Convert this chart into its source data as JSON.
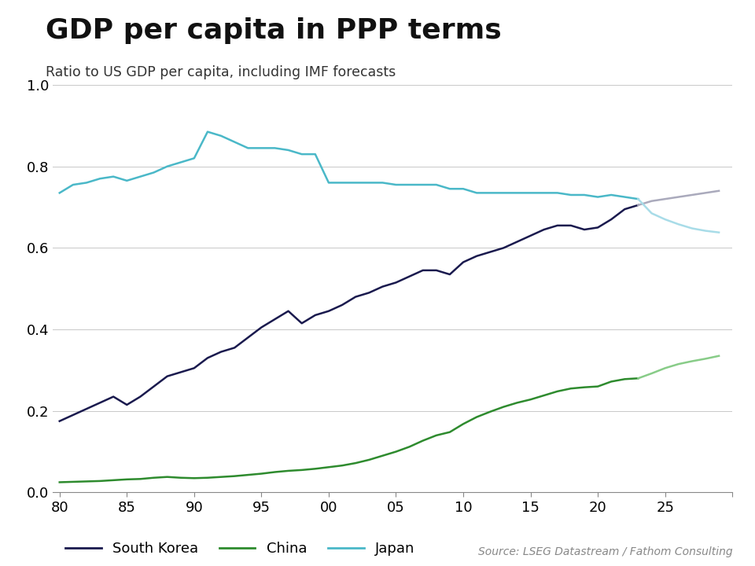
{
  "title": "GDP per capita in PPP terms",
  "subtitle": "Ratio to US GDP per capita, including IMF forecasts",
  "source": "Source: LSEG Datastream / Fathom Consulting",
  "ylim": [
    0.0,
    1.0
  ],
  "south_korea_color": "#1a1a4e",
  "china_color": "#2e8b2e",
  "japan_color": "#4ab8c8",
  "japan_forecast_color": "#a8dce8",
  "south_korea_forecast_color": "#aaaabc",
  "china_forecast_color": "#88cc88",
  "south_korea": {
    "years": [
      1980,
      1981,
      1982,
      1983,
      1984,
      1985,
      1986,
      1987,
      1988,
      1989,
      1990,
      1991,
      1992,
      1993,
      1994,
      1995,
      1996,
      1997,
      1998,
      1999,
      2000,
      2001,
      2002,
      2003,
      2004,
      2005,
      2006,
      2007,
      2008,
      2009,
      2010,
      2011,
      2012,
      2013,
      2014,
      2015,
      2016,
      2017,
      2018,
      2019,
      2020,
      2021,
      2022,
      2023
    ],
    "values": [
      0.175,
      0.19,
      0.205,
      0.22,
      0.235,
      0.215,
      0.235,
      0.26,
      0.285,
      0.295,
      0.305,
      0.33,
      0.345,
      0.355,
      0.38,
      0.405,
      0.425,
      0.445,
      0.415,
      0.435,
      0.445,
      0.46,
      0.48,
      0.49,
      0.505,
      0.515,
      0.53,
      0.545,
      0.545,
      0.535,
      0.565,
      0.58,
      0.59,
      0.6,
      0.615,
      0.63,
      0.645,
      0.655,
      0.655,
      0.645,
      0.65,
      0.67,
      0.695,
      0.705
    ]
  },
  "south_korea_forecast": {
    "years": [
      2023,
      2024,
      2025,
      2026,
      2027,
      2028,
      2029
    ],
    "values": [
      0.705,
      0.715,
      0.72,
      0.725,
      0.73,
      0.735,
      0.74
    ]
  },
  "china": {
    "years": [
      1980,
      1981,
      1982,
      1983,
      1984,
      1985,
      1986,
      1987,
      1988,
      1989,
      1990,
      1991,
      1992,
      1993,
      1994,
      1995,
      1996,
      1997,
      1998,
      1999,
      2000,
      2001,
      2002,
      2003,
      2004,
      2005,
      2006,
      2007,
      2008,
      2009,
      2010,
      2011,
      2012,
      2013,
      2014,
      2015,
      2016,
      2017,
      2018,
      2019,
      2020,
      2021,
      2022,
      2023
    ],
    "values": [
      0.025,
      0.026,
      0.027,
      0.028,
      0.03,
      0.032,
      0.033,
      0.036,
      0.038,
      0.036,
      0.035,
      0.036,
      0.038,
      0.04,
      0.043,
      0.046,
      0.05,
      0.053,
      0.055,
      0.058,
      0.062,
      0.066,
      0.072,
      0.08,
      0.09,
      0.1,
      0.112,
      0.127,
      0.14,
      0.148,
      0.168,
      0.185,
      0.198,
      0.21,
      0.22,
      0.228,
      0.238,
      0.248,
      0.255,
      0.258,
      0.26,
      0.272,
      0.278,
      0.28
    ]
  },
  "china_forecast": {
    "years": [
      2023,
      2024,
      2025,
      2026,
      2027,
      2028,
      2029
    ],
    "values": [
      0.28,
      0.292,
      0.305,
      0.315,
      0.322,
      0.328,
      0.335
    ]
  },
  "japan": {
    "years": [
      1980,
      1981,
      1982,
      1983,
      1984,
      1985,
      1986,
      1987,
      1988,
      1989,
      1990,
      1991,
      1992,
      1993,
      1994,
      1995,
      1996,
      1997,
      1998,
      1999,
      2000,
      2001,
      2002,
      2003,
      2004,
      2005,
      2006,
      2007,
      2008,
      2009,
      2010,
      2011,
      2012,
      2013,
      2014,
      2015,
      2016,
      2017,
      2018,
      2019,
      2020,
      2021,
      2022,
      2023
    ],
    "values": [
      0.735,
      0.755,
      0.76,
      0.77,
      0.775,
      0.765,
      0.775,
      0.785,
      0.8,
      0.81,
      0.82,
      0.885,
      0.875,
      0.86,
      0.845,
      0.845,
      0.845,
      0.84,
      0.83,
      0.83,
      0.76,
      0.76,
      0.76,
      0.76,
      0.76,
      0.755,
      0.755,
      0.755,
      0.755,
      0.745,
      0.745,
      0.735,
      0.735,
      0.735,
      0.735,
      0.735,
      0.735,
      0.735,
      0.73,
      0.73,
      0.725,
      0.73,
      0.725,
      0.72
    ]
  },
  "japan_forecast": {
    "years": [
      2023,
      2024,
      2025,
      2026,
      2027,
      2028,
      2029
    ],
    "values": [
      0.72,
      0.685,
      0.67,
      0.658,
      0.648,
      0.642,
      0.638
    ]
  },
  "legend_entries": [
    "South Korea",
    "China",
    "Japan"
  ],
  "background_color": "#ffffff"
}
